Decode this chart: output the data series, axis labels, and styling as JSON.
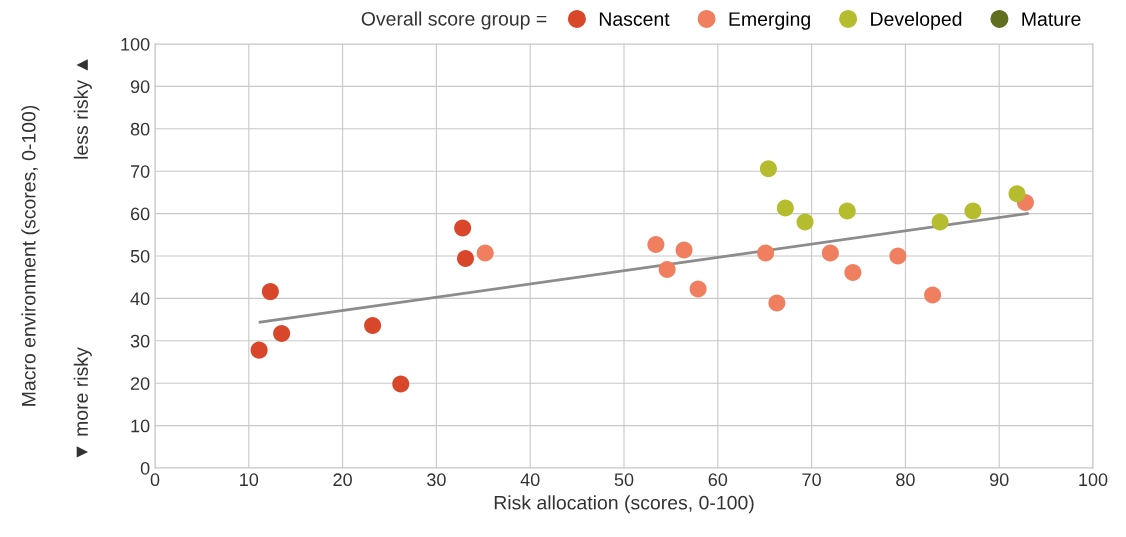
{
  "chart_data": {
    "type": "scatter",
    "xlabel": "Risk allocation (scores, 0-100)",
    "ylabel": "Macro environment (scores, 0-100)",
    "legend_title": "Overall score group =",
    "xlim": [
      0,
      100
    ],
    "xticks": [
      0,
      10,
      20,
      30,
      40,
      50,
      60,
      70,
      80,
      90,
      100
    ],
    "ylim": [
      0,
      100
    ],
    "yticks": [
      0,
      10,
      20,
      30,
      40,
      50,
      60,
      70,
      80,
      90,
      100
    ],
    "grid": true,
    "legend": "top right",
    "marker": "circle",
    "annotations": [
      "less risky ▲",
      "▼ more risky"
    ],
    "series": [
      {
        "name": "Nascent",
        "color": "#d9472b",
        "x": [
          11.1,
          12.3,
          13.5,
          23.2,
          26.2,
          32.8,
          33.1
        ],
        "values": [
          27.8,
          41.6,
          31.7,
          33.6,
          19.8,
          56.6,
          49.4
        ]
      },
      {
        "name": "Emerging",
        "color": "#f07f60",
        "x": [
          35.2,
          53.4,
          54.6,
          56.4,
          57.9,
          65.1,
          66.3,
          72.0,
          74.4,
          79.2,
          82.9,
          92.8
        ],
        "values": [
          50.7,
          52.7,
          46.8,
          51.4,
          42.2,
          50.7,
          38.9,
          50.7,
          46.1,
          50.0,
          40.8,
          62.6
        ]
      },
      {
        "name": "Developed",
        "color": "#b5bd2e",
        "x": [
          65.4,
          67.2,
          69.3,
          73.8,
          83.7,
          87.2,
          91.9
        ],
        "values": [
          70.6,
          61.3,
          58.0,
          60.6,
          58.0,
          60.6,
          64.7
        ]
      },
      {
        "name": "Mature",
        "color": "#5f6e1f"
      },
      {
        "type": "line",
        "color": "#8c8c8c",
        "marker": "none",
        "x": [
          11.2,
          93.0
        ],
        "values": [
          34.4,
          60.0
        ]
      }
    ]
  }
}
